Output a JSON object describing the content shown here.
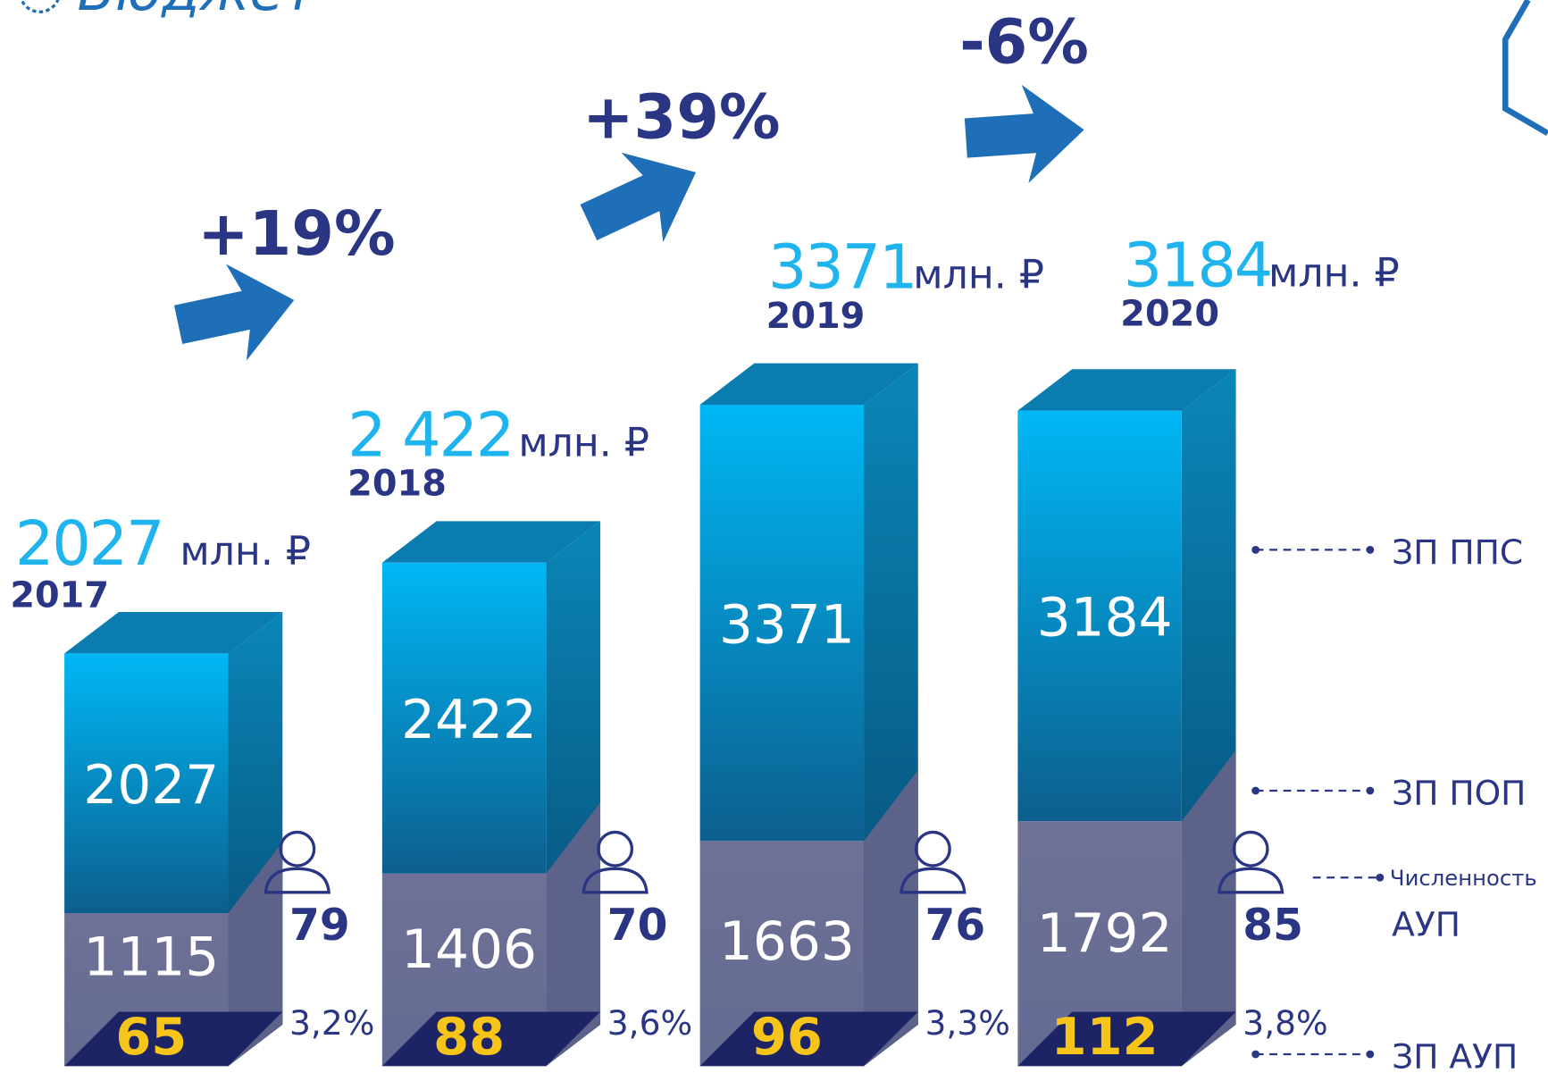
{
  "title": "Бюджет",
  "columns": [
    {
      "total": "2027",
      "unit": "млн. ₽",
      "year": "2017",
      "pps": "2027",
      "pop": "1115",
      "aup": "65",
      "staff": "79",
      "share": "3,2%"
    },
    {
      "total": "2 422",
      "unit": "млн. ₽",
      "year": "2018",
      "pps": "2422",
      "pop": "1406",
      "aup": "88",
      "staff": "70",
      "share": "3,6%"
    },
    {
      "total": "3371",
      "unit": "млн. ₽",
      "year": "2019",
      "pps": "3371",
      "pop": "1663",
      "aup": "96",
      "staff": "76",
      "share": "3,3%"
    },
    {
      "total": "3184",
      "unit": "млн. ₽",
      "year": "2020",
      "pps": "3184",
      "pop": "1792",
      "aup": "112",
      "staff": "85",
      "share": "3,8%"
    }
  ],
  "changes": [
    "+19%",
    "+39%",
    "-6%"
  ],
  "legend": {
    "pps": "ЗП ППС",
    "pop": "ЗП ПОП",
    "staff_line1": "Численность",
    "staff_line2": "АУП",
    "aup": "ЗП АУП"
  }
}
